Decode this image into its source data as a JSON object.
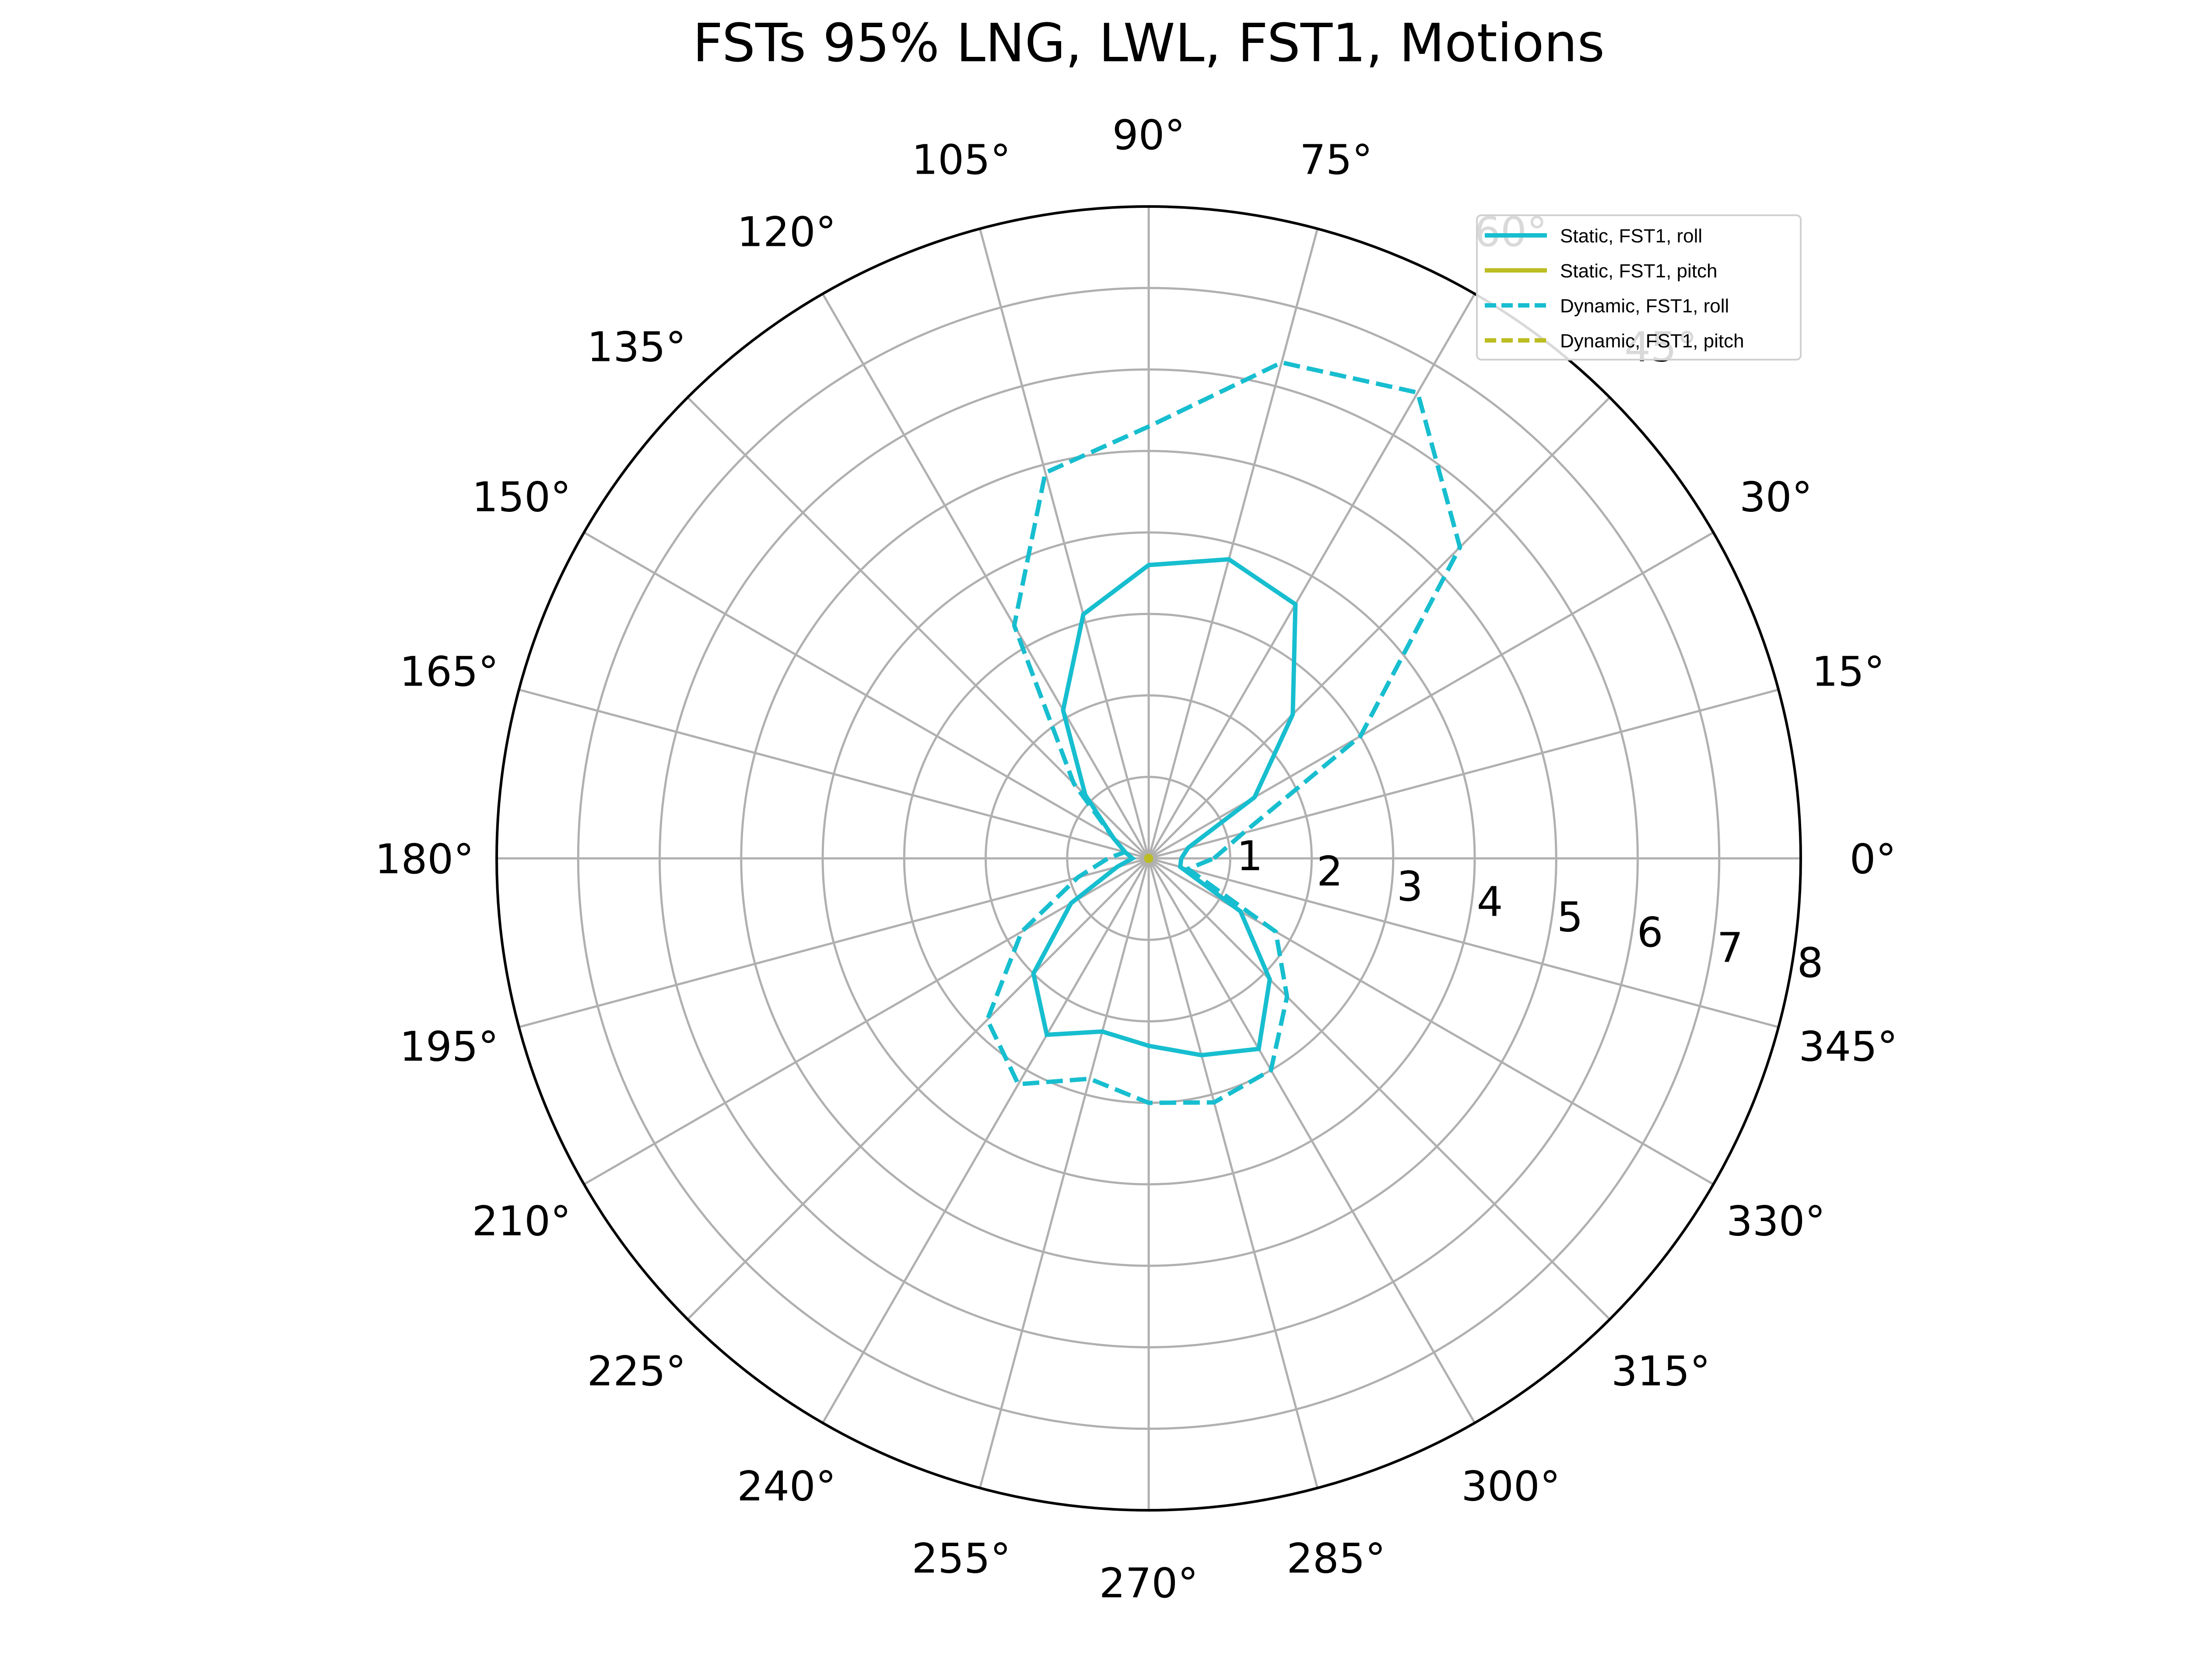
{
  "chart_data": {
    "type": "line",
    "subtype": "polar",
    "title": "FSTs 95% LNG, LWL, FST1, Motions",
    "xlabel": "",
    "ylabel": "",
    "angle_unit": "degrees",
    "angle_direction": "counterclockwise",
    "theta_zero": "east",
    "rlim": [
      0,
      8
    ],
    "radial_ticks": [
      "1",
      "2",
      "3",
      "4",
      "5",
      "6",
      "7",
      "8"
    ],
    "angular_ticks": [
      "0°",
      "15°",
      "30°",
      "45°",
      "60°",
      "75°",
      "90°",
      "105°",
      "120°",
      "135°",
      "150°",
      "165°",
      "180°",
      "195°",
      "210°",
      "225°",
      "240°",
      "255°",
      "270°",
      "285°",
      "300°",
      "315°",
      "330°",
      "345°"
    ],
    "grid": true,
    "legend_position": "upper right",
    "theta": [
      0,
      15,
      30,
      45,
      60,
      75,
      90,
      105,
      120,
      135,
      150,
      165,
      180,
      195,
      210,
      225,
      240,
      255,
      270,
      285,
      300,
      315,
      330,
      345
    ],
    "series": [
      {
        "name": "Static, FST1, roll",
        "color": "#17becf",
        "linestyle": "solid",
        "values": [
          0.4,
          0.5,
          1.5,
          2.5,
          3.6,
          3.8,
          3.6,
          3.1,
          2.1,
          1.1,
          0.5,
          0.3,
          0.2,
          0.4,
          1.1,
          2.0,
          2.5,
          2.2,
          2.3,
          2.5,
          2.7,
          2.1,
          1.3,
          0.4
        ],
        "line_color": "#17becf"
      },
      {
        "name": "Static, FST1, pitch",
        "color": "#bcbd22",
        "linestyle": "solid",
        "values": [
          0.02,
          0.02,
          0.02,
          0.02,
          0.02,
          0.02,
          0.02,
          0.02,
          0.02,
          0.02,
          0.02,
          0.02,
          0.02,
          0.02,
          0.02,
          0.02,
          0.02,
          0.02,
          0.02,
          0.02,
          0.02,
          0.02,
          0.02,
          0.02
        ],
        "line_color": "#bcbd22"
      },
      {
        "name": "Dynamic, FST1, roll",
        "color": "#17becf",
        "linestyle": "dashed",
        "values": [
          0.8,
          1.2,
          3.0,
          5.4,
          6.6,
          6.3,
          5.3,
          4.9,
          3.3,
          1.3,
          0.5,
          0.3,
          0.5,
          0.9,
          1.8,
          2.8,
          3.2,
          2.8,
          3.0,
          3.1,
          3.0,
          2.4,
          1.8,
          0.5
        ],
        "line_color": "#17becf"
      },
      {
        "name": "Dynamic, FST1, pitch",
        "color": "#bcbd22",
        "linestyle": "dashed",
        "values": [
          0.03,
          0.03,
          0.03,
          0.03,
          0.03,
          0.03,
          0.03,
          0.03,
          0.03,
          0.03,
          0.03,
          0.03,
          0.03,
          0.03,
          0.03,
          0.03,
          0.03,
          0.03,
          0.03,
          0.03,
          0.03,
          0.03,
          0.03,
          0.03
        ],
        "line_color": "#bcbd22"
      }
    ]
  }
}
